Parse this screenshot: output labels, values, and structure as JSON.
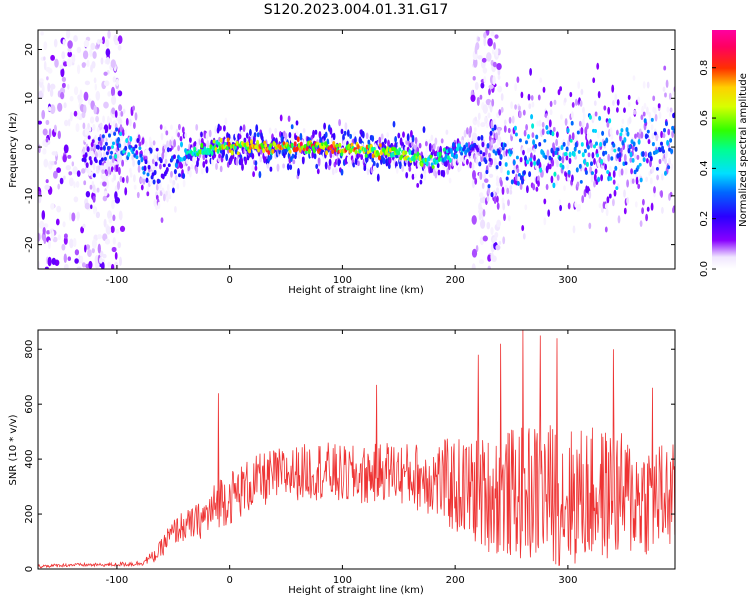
{
  "figure": {
    "title": "S120.2023.004.01.31.G17"
  },
  "chart_data": [
    {
      "type": "heatmap",
      "title": "S120.2023.004.01.31.G17",
      "xlabel": "Height of straight line (km)",
      "ylabel": "Frequency (Hz)",
      "xlim": [
        -170,
        395
      ],
      "ylim": [
        -25,
        24
      ],
      "x_ticks": [
        -100,
        0,
        100,
        200,
        300
      ],
      "y_ticks": [
        -20,
        -10,
        0,
        10,
        20
      ],
      "colorbar": {
        "label": "Normalized spectral amplitude",
        "range": [
          0,
          0.95
        ],
        "ticks": [
          "0.0",
          "0.2",
          "0.4",
          "0.6",
          "0.8"
        ],
        "colormap": "rainbow (white to purple to blue to cyan to green to yellow to red to magenta)"
      },
      "ridge": {
        "x": [
          -120,
          -100,
          -80,
          -65,
          -55,
          -45,
          -30,
          -10,
          0,
          20,
          50,
          80,
          110,
          140,
          160,
          180,
          200,
          220,
          250,
          300,
          350,
          395
        ],
        "frequency": [
          -2,
          1,
          -2,
          -5,
          -5,
          -2,
          -1,
          0,
          0,
          0,
          0,
          0,
          -0.5,
          -1,
          -2,
          -3,
          -1,
          0,
          -1,
          0,
          -1,
          1
        ],
        "peak_amplitude": [
          0.2,
          0.45,
          0.35,
          0.3,
          0.25,
          0.35,
          0.55,
          0.75,
          0.8,
          0.85,
          0.85,
          0.9,
          0.85,
          0.8,
          0.75,
          0.6,
          0.45,
          0.25,
          0.4,
          0.45,
          0.4,
          0.35
        ]
      },
      "noise_regions": [
        [
          -170,
          -95
        ],
        [
          215,
          240
        ]
      ]
    },
    {
      "type": "line",
      "xlabel": "Height of straight line (km)",
      "ylabel": "SNR (10 * v/v)",
      "xlim": [
        -170,
        395
      ],
      "ylim": [
        0,
        870
      ],
      "x_ticks": [
        -100,
        0,
        100,
        200,
        300
      ],
      "y_ticks": [
        0,
        200,
        400,
        600,
        800
      ],
      "color": "#ee3333",
      "series": [
        {
          "x": [
            -170,
            -140,
            -110,
            -80,
            -65,
            -55,
            -45,
            -35,
            -25,
            -15,
            -10,
            0,
            20,
            40,
            60,
            80,
            100,
            120,
            140,
            160,
            180,
            200,
            220,
            240,
            260,
            280,
            300,
            320,
            340,
            360,
            380,
            395
          ],
          "values": [
            10,
            15,
            15,
            20,
            50,
            110,
            150,
            160,
            180,
            210,
            250,
            260,
            310,
            340,
            350,
            360,
            340,
            340,
            360,
            340,
            330,
            300,
            280,
            270,
            280,
            280,
            260,
            270,
            270,
            260,
            260,
            260
          ],
          "spread": [
            6,
            6,
            6,
            10,
            25,
            45,
            55,
            60,
            70,
            90,
            100,
            100,
            100,
            100,
            100,
            110,
            110,
            110,
            110,
            120,
            140,
            180,
            200,
            230,
            250,
            260,
            260,
            250,
            240,
            220,
            210,
            200
          ],
          "peaks": [
            {
              "x": -10,
              "value": 640
            },
            {
              "x": 130,
              "value": 670
            },
            {
              "x": 220,
              "value": 780
            },
            {
              "x": 240,
              "value": 820
            },
            {
              "x": 260,
              "value": 870
            },
            {
              "x": 275,
              "value": 850
            },
            {
              "x": 290,
              "value": 840
            },
            {
              "x": 340,
              "value": 800
            },
            {
              "x": 375,
              "value": 660
            }
          ]
        }
      ]
    }
  ]
}
